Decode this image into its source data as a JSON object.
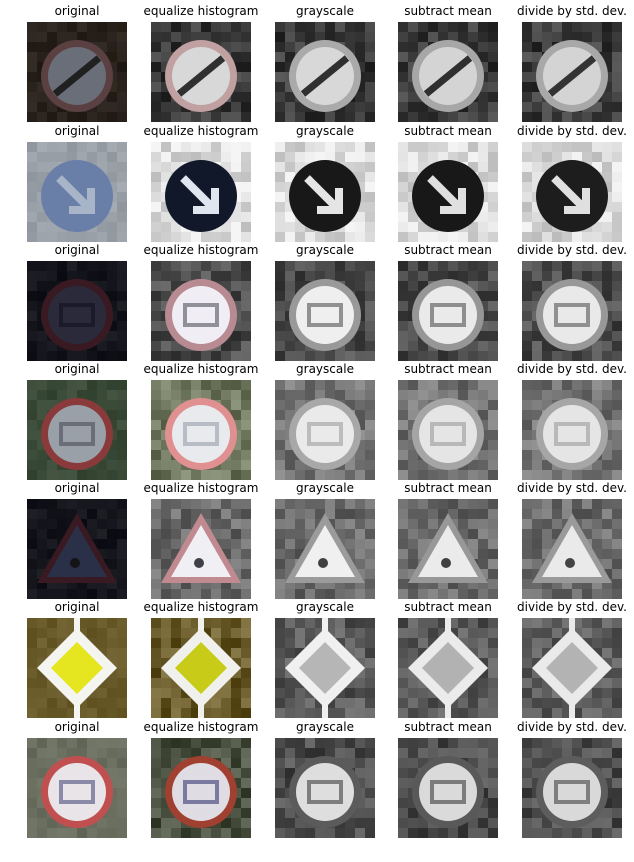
{
  "columns": [
    "original",
    "equalize histogram",
    "grayscale",
    "subtract mean",
    "divide by std. dev."
  ],
  "rows": [
    {
      "sign": "end-restriction-icon",
      "shape": "circle-slash",
      "original": {
        "bg": "#2a221c",
        "face": "#6a6e78",
        "ring": "#5a4040",
        "mark": "#202020"
      },
      "equalized": {
        "bg": "#3a3a3a",
        "face": "#d8d8d8",
        "ring": "#c0a0a0",
        "mark": "#303030"
      }
    },
    {
      "sign": "keep-right-icon",
      "shape": "circle-arrow",
      "original": {
        "bg": "#9aa0a8",
        "face": "#6a7fa8",
        "ring": "#6a7fa8",
        "mark": "#a8b4c8"
      },
      "equalized": {
        "bg": "#dcdcdc",
        "face": "#10182a",
        "ring": "#10182a",
        "mark": "#e0e6f0"
      }
    },
    {
      "sign": "speed-limit-60-icon",
      "shape": "circle-number",
      "original": {
        "bg": "#14141c",
        "face": "#2a2a3a",
        "ring": "#3a1a22",
        "mark": "#1a1a28"
      },
      "equalized": {
        "bg": "#4a4a4a",
        "face": "#f0eef4",
        "ring": "#b88a92",
        "mark": "#909098"
      }
    },
    {
      "sign": "speed-limit-100-icon",
      "shape": "circle-number",
      "original": {
        "bg": "#3a4a38",
        "face": "#9aa0a8",
        "ring": "#8a3a3a",
        "mark": "#6a6e78"
      },
      "equalized": {
        "bg": "#707860",
        "face": "#e8eaee",
        "ring": "#e09090",
        "mark": "#b8bcc4"
      }
    },
    {
      "sign": "warning-triangle-icon",
      "shape": "triangle",
      "original": {
        "bg": "#14141c",
        "face": "#2a3048",
        "ring": "#3a1a22",
        "mark": "#141418"
      },
      "equalized": {
        "bg": "#6a6a6a",
        "face": "#f0f0f4",
        "ring": "#c08a90",
        "mark": "#404048"
      }
    },
    {
      "sign": "priority-road-icon",
      "shape": "diamond",
      "original": {
        "bg": "#6a5a2a",
        "face": "#e6e620",
        "ring": "#f4f4f0",
        "mark": "#e6e620"
      },
      "equalized": {
        "bg": "#6a5a2a",
        "face": "#c8cc18",
        "ring": "#f0f0ec",
        "mark": "#c8cc18"
      }
    },
    {
      "sign": "speed-limit-50-icon",
      "shape": "circle-number",
      "original": {
        "bg": "#6a6e60",
        "face": "#e8e4e8",
        "ring": "#c05050",
        "mark": "#8a8aa8"
      },
      "equalized": {
        "bg": "#4a5040",
        "face": "#e0dce4",
        "ring": "#a04030",
        "mark": "#7a7aa0"
      }
    }
  ]
}
